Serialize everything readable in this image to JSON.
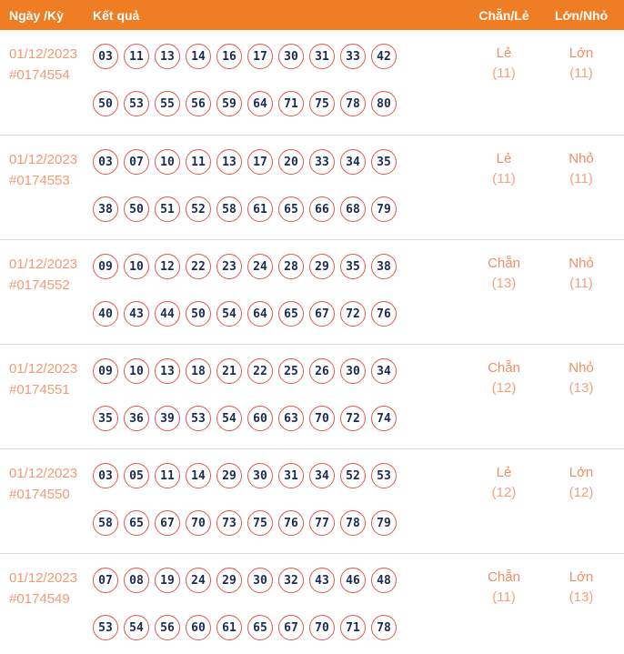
{
  "colors": {
    "header-bg": "#EF7D23",
    "header-text": "#FFFFFF",
    "date-text": "#F09A76",
    "label-text": "#EF8E63",
    "count-text": "#F2A27F",
    "ball-border": "#E2574D",
    "ball-number": "#1B2A50",
    "row-divider": "#DDDDDD",
    "page-bg": "#FFFFFF"
  },
  "header": {
    "date_col": "Ngày /Kỳ",
    "result_col": "Kết quả",
    "parity_col": "Chẵn/Lẻ",
    "size_col": "Lớn/Nhỏ"
  },
  "rows": [
    {
      "date": "01/12/2023",
      "draw_id": "#0174554",
      "numbers_line1": [
        "03",
        "11",
        "13",
        "14",
        "16",
        "17",
        "30",
        "31",
        "33",
        "42"
      ],
      "numbers_line2": [
        "50",
        "53",
        "55",
        "56",
        "59",
        "64",
        "71",
        "75",
        "78",
        "80"
      ],
      "parity_label": "Lẻ",
      "parity_count": "(11)",
      "size_label": "Lớn",
      "size_count": "(11)"
    },
    {
      "date": "01/12/2023",
      "draw_id": "#0174553",
      "numbers_line1": [
        "03",
        "07",
        "10",
        "11",
        "13",
        "17",
        "20",
        "33",
        "34",
        "35"
      ],
      "numbers_line2": [
        "38",
        "50",
        "51",
        "52",
        "58",
        "61",
        "65",
        "66",
        "68",
        "79"
      ],
      "parity_label": "Lẻ",
      "parity_count": "(11)",
      "size_label": "Nhỏ",
      "size_count": "(11)"
    },
    {
      "date": "01/12/2023",
      "draw_id": "#0174552",
      "numbers_line1": [
        "09",
        "10",
        "12",
        "22",
        "23",
        "24",
        "28",
        "29",
        "35",
        "38"
      ],
      "numbers_line2": [
        "40",
        "43",
        "44",
        "50",
        "54",
        "64",
        "65",
        "67",
        "72",
        "76"
      ],
      "parity_label": "Chẵn",
      "parity_count": "(13)",
      "size_label": "Nhỏ",
      "size_count": "(11)"
    },
    {
      "date": "01/12/2023",
      "draw_id": "#0174551",
      "numbers_line1": [
        "09",
        "10",
        "13",
        "18",
        "21",
        "22",
        "25",
        "26",
        "30",
        "34"
      ],
      "numbers_line2": [
        "35",
        "36",
        "39",
        "53",
        "54",
        "60",
        "63",
        "70",
        "72",
        "74"
      ],
      "parity_label": "Chẵn",
      "parity_count": "(12)",
      "size_label": "Nhỏ",
      "size_count": "(13)"
    },
    {
      "date": "01/12/2023",
      "draw_id": "#0174550",
      "numbers_line1": [
        "03",
        "05",
        "11",
        "14",
        "29",
        "30",
        "31",
        "34",
        "52",
        "53"
      ],
      "numbers_line2": [
        "58",
        "65",
        "67",
        "70",
        "73",
        "75",
        "76",
        "77",
        "78",
        "79"
      ],
      "parity_label": "Lẻ",
      "parity_count": "(12)",
      "size_label": "Lớn",
      "size_count": "(12)"
    },
    {
      "date": "01/12/2023",
      "draw_id": "#0174549",
      "numbers_line1": [
        "07",
        "08",
        "19",
        "24",
        "29",
        "30",
        "32",
        "43",
        "46",
        "48"
      ],
      "numbers_line2": [
        "53",
        "54",
        "56",
        "60",
        "61",
        "65",
        "67",
        "70",
        "71",
        "78"
      ],
      "parity_label": "Chẵn",
      "parity_count": "(11)",
      "size_label": "Lớn",
      "size_count": "(13)"
    }
  ]
}
